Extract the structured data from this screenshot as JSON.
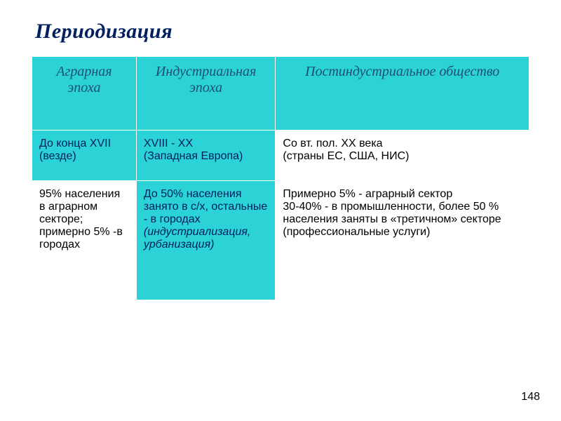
{
  "title": "Периодизация",
  "page_number": "148",
  "table": {
    "type": "table",
    "background_colors": {
      "cyan": "#2bd3d6",
      "white": "#ffffff"
    },
    "text_colors": {
      "header": "#1f4e79",
      "title": "#002060",
      "body_dark": "#002060",
      "body_black": "#000000"
    },
    "header": {
      "col1": "Аграрная эпоха",
      "col2": "Индустриальная эпоха",
      "col3": "Постиндустриальное общество"
    },
    "row_period": {
      "col1": "До конца XVII (везде)",
      "col2": "XVIII  - XX\n(Западная Европа)",
      "col3": "Со вт. пол. XX века\n (страны ЕС, США, НИС)"
    },
    "row_detail": {
      "col1": "95% населения в аграрном секторе; примерно 5%  -в городах",
      "col2_plain": "До 50% населения занято в с/х, остальные - в городах ",
      "col2_italic": "(индустриализация, урбанизация)",
      "col3": "Примерно 5% - аграрный сектор\n30-40% - в промышленности, более 50 % населения заняты в «третичном» секторе (профессиональные услуги)"
    },
    "column_widths_pct": [
      21,
      28,
      51
    ],
    "header_font": {
      "style": "italic",
      "size_pt": 20,
      "family": "Times New Roman"
    },
    "body_font": {
      "size_pt": 16,
      "family": "Arial"
    }
  }
}
